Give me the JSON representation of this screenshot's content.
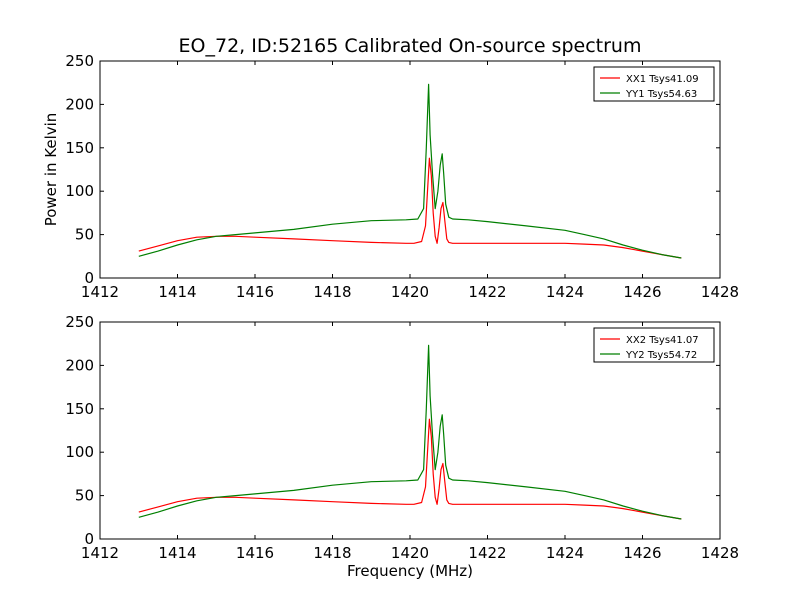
{
  "figure": {
    "title": "EO_72, ID:52165 Calibrated On-source spectrum"
  },
  "chart_data": [
    {
      "type": "line",
      "title": "EO_72, ID:52165 Calibrated On-source spectrum",
      "xlabel": "",
      "ylabel": "Power in Kelvin",
      "xlim": [
        1412,
        1428
      ],
      "ylim": [
        0,
        250
      ],
      "xticks": [
        1412,
        1414,
        1416,
        1418,
        1420,
        1422,
        1424,
        1426,
        1428
      ],
      "yticks": [
        0,
        50,
        100,
        150,
        200,
        250
      ],
      "grid": false,
      "legend": "top-right",
      "series": [
        {
          "name": "XX1 Tsys41.09",
          "color": "#ff0000",
          "x": [
            1413.0,
            1413.5,
            1414.0,
            1414.5,
            1415.0,
            1415.5,
            1416.0,
            1417.0,
            1418.0,
            1419.0,
            1419.9,
            1420.1,
            1420.3,
            1420.4,
            1420.5,
            1420.55,
            1420.6,
            1420.65,
            1420.7,
            1420.75,
            1420.8,
            1420.85,
            1420.9,
            1420.95,
            1421.0,
            1421.1,
            1421.5,
            1422.0,
            1423.0,
            1424.0,
            1424.5,
            1425.0,
            1425.5,
            1426.0,
            1426.5,
            1427.0
          ],
          "y": [
            31,
            37,
            43,
            47,
            48,
            48,
            47,
            45,
            43,
            41,
            40,
            40,
            42,
            60,
            138,
            118,
            75,
            48,
            40,
            58,
            80,
            87,
            65,
            45,
            41,
            40,
            40,
            40,
            40,
            40,
            39,
            38,
            35,
            31,
            27,
            23
          ]
        },
        {
          "name": "YY1 Tsys54.63",
          "color": "#007f00",
          "x": [
            1413.0,
            1413.5,
            1414.0,
            1414.5,
            1415.0,
            1415.5,
            1416.0,
            1417.0,
            1418.0,
            1419.0,
            1419.9,
            1420.2,
            1420.35,
            1420.42,
            1420.48,
            1420.52,
            1420.58,
            1420.65,
            1420.72,
            1420.78,
            1420.83,
            1420.87,
            1420.92,
            1421.0,
            1421.1,
            1421.5,
            1422.0,
            1423.0,
            1424.0,
            1424.5,
            1425.0,
            1425.5,
            1426.0,
            1426.5,
            1427.0
          ],
          "y": [
            25,
            31,
            38,
            44,
            48,
            50,
            52,
            56,
            62,
            66,
            67,
            68,
            80,
            150,
            223,
            165,
            120,
            80,
            100,
            130,
            143,
            120,
            85,
            70,
            68,
            67,
            65,
            60,
            55,
            50,
            45,
            38,
            32,
            27,
            23
          ]
        }
      ]
    },
    {
      "type": "line",
      "title": "",
      "xlabel": "Frequency (MHz)",
      "ylabel": "",
      "xlim": [
        1412,
        1428
      ],
      "ylim": [
        0,
        250
      ],
      "xticks": [
        1412,
        1414,
        1416,
        1418,
        1420,
        1422,
        1424,
        1426,
        1428
      ],
      "yticks": [
        0,
        50,
        100,
        150,
        200,
        250
      ],
      "grid": false,
      "legend": "top-right",
      "series": [
        {
          "name": "XX2 Tsys41.07",
          "color": "#ff0000",
          "x": [
            1413.0,
            1413.5,
            1414.0,
            1414.5,
            1415.0,
            1415.5,
            1416.0,
            1417.0,
            1418.0,
            1419.0,
            1419.9,
            1420.1,
            1420.3,
            1420.4,
            1420.5,
            1420.55,
            1420.6,
            1420.65,
            1420.7,
            1420.75,
            1420.8,
            1420.85,
            1420.9,
            1420.95,
            1421.0,
            1421.1,
            1421.5,
            1422.0,
            1423.0,
            1424.0,
            1424.5,
            1425.0,
            1425.5,
            1426.0,
            1426.5,
            1427.0
          ],
          "y": [
            31,
            37,
            43,
            47,
            48,
            48,
            47,
            45,
            43,
            41,
            40,
            40,
            42,
            60,
            138,
            118,
            75,
            48,
            40,
            58,
            80,
            87,
            65,
            45,
            41,
            40,
            40,
            40,
            40,
            40,
            39,
            38,
            35,
            31,
            27,
            23
          ]
        },
        {
          "name": "YY2 Tsys54.72",
          "color": "#007f00",
          "x": [
            1413.0,
            1413.5,
            1414.0,
            1414.5,
            1415.0,
            1415.5,
            1416.0,
            1417.0,
            1418.0,
            1419.0,
            1419.9,
            1420.2,
            1420.35,
            1420.42,
            1420.48,
            1420.52,
            1420.58,
            1420.65,
            1420.72,
            1420.78,
            1420.83,
            1420.87,
            1420.92,
            1421.0,
            1421.1,
            1421.5,
            1422.0,
            1423.0,
            1424.0,
            1424.5,
            1425.0,
            1425.5,
            1426.0,
            1426.5,
            1427.0
          ],
          "y": [
            25,
            31,
            38,
            44,
            48,
            50,
            52,
            56,
            62,
            66,
            67,
            68,
            80,
            150,
            223,
            165,
            120,
            80,
            100,
            130,
            143,
            120,
            85,
            70,
            68,
            67,
            65,
            60,
            55,
            50,
            45,
            38,
            32,
            27,
            23
          ]
        }
      ]
    }
  ]
}
